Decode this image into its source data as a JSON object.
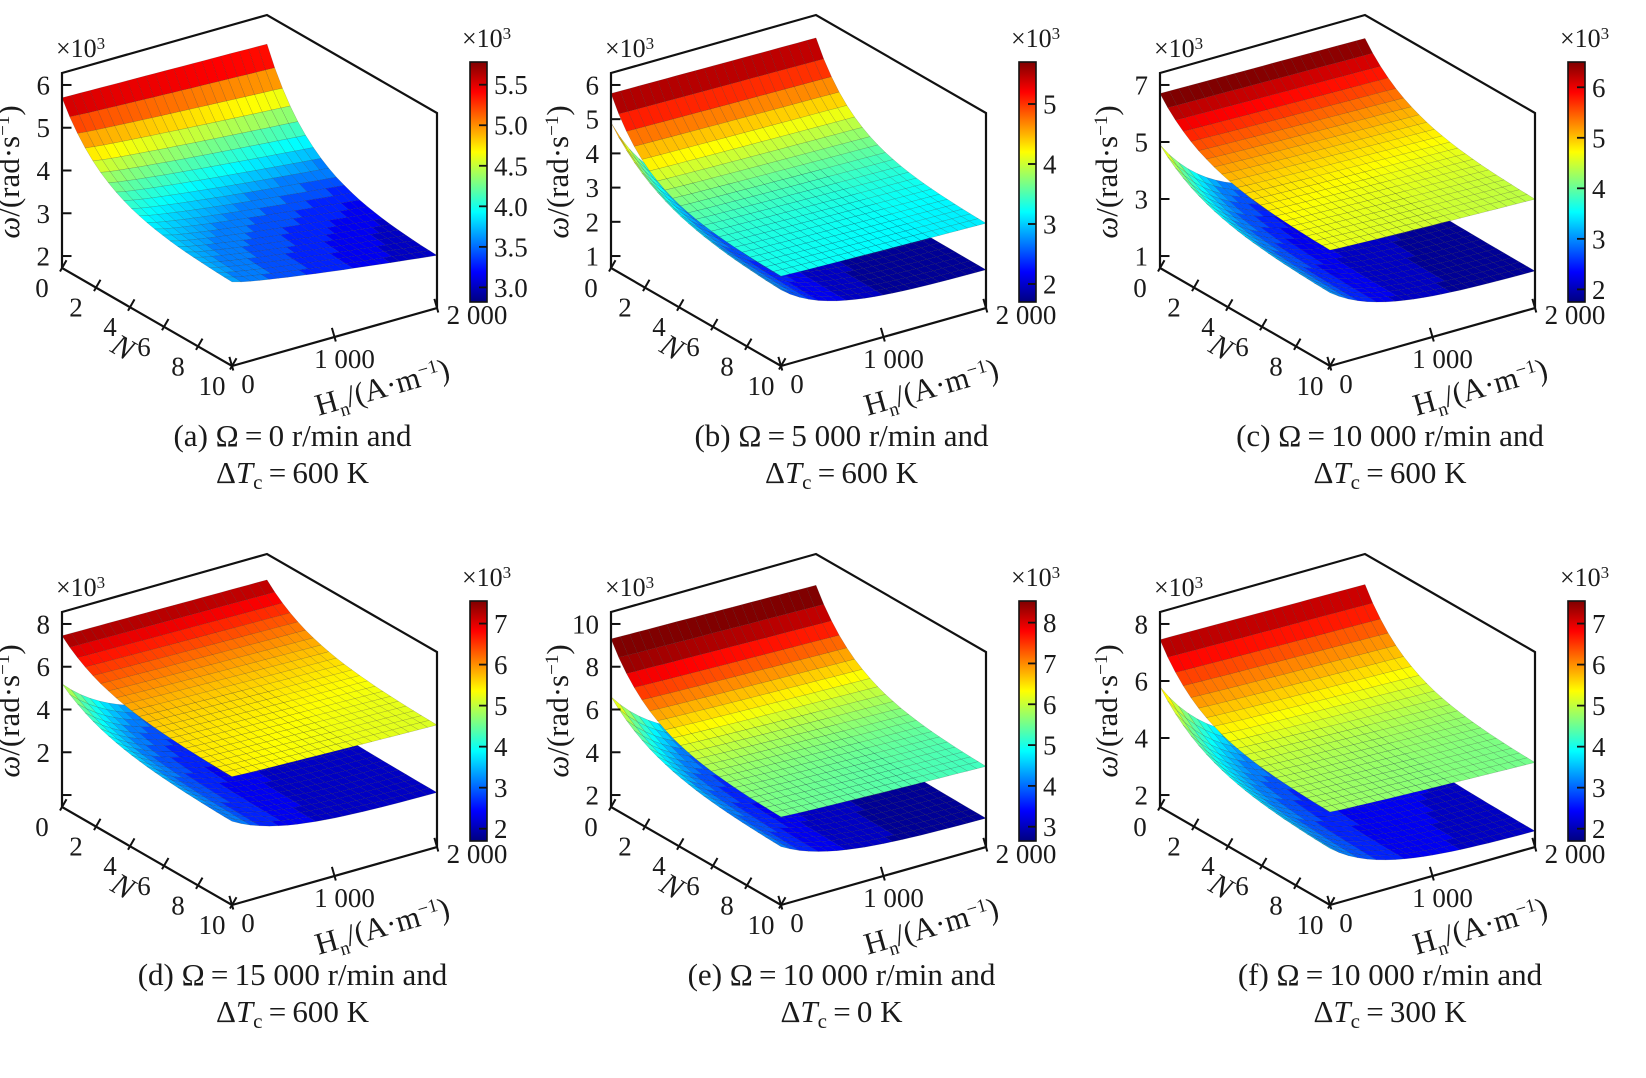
{
  "chart_data": {
    "type": "surface",
    "title": "",
    "layout": {
      "rows": 2,
      "cols": 3,
      "colormap": "jet",
      "grid": "3d-box",
      "legend_position": "colorbar-right"
    },
    "axes": {
      "z": {
        "multiplier": {
          "base": "×10",
          "sup": "3"
        },
        "label": {
          "omega": "ω",
          "rest": "/(rad·s",
          "sup": "−1",
          "close": ")"
        }
      },
      "n": {
        "label": "N",
        "ticks": [
          "0",
          "2",
          "4",
          "6",
          "8",
          "10"
        ],
        "range": [
          0,
          10
        ]
      },
      "h": {
        "label": {
          "H": "H",
          "sub": "n",
          "rest": "/(A·m",
          "sup": "−1",
          "close": ")"
        },
        "ticks": [
          "0",
          "1 000",
          "2 000"
        ],
        "range": [
          0,
          2000
        ]
      }
    },
    "panels": [
      {
        "id": "a",
        "z_ticks": [
          "6",
          "5",
          "4",
          "3",
          "2"
        ],
        "z_tick_values": [
          6000,
          5000,
          4000,
          3000,
          2000
        ],
        "zlim": [
          1720,
          6280
        ],
        "colorbar": {
          "multiplier": {
            "base": "×10",
            "sup": "3"
          },
          "ticks": [
            "5.5",
            "5.0",
            "4.5",
            "4.0",
            "3.5",
            "3.0"
          ],
          "tick_values": [
            5500,
            5000,
            4500,
            4000,
            3500,
            3000
          ],
          "cmin": 2820,
          "cmax": 5780
        },
        "caption": {
          "line1": "(a) Ω = 0 r/min and",
          "line2": {
            "delta": "Δ",
            "T": "T",
            "sub": "c",
            "rest": " = 600 K"
          }
        },
        "surfaces": [
          {
            "role": "single",
            "model": "plateau",
            "nTau": 2.5,
            "corner_values_rad_per_s": {
              "N0_H0": 5700,
              "N0_H2000": 5600,
              "N10_H0": 3650,
              "N10_H2000": 2900
            }
          }
        ]
      },
      {
        "id": "b",
        "z_ticks": [
          "6",
          "5",
          "4",
          "3",
          "2",
          "1"
        ],
        "z_tick_values": [
          6000,
          5000,
          4000,
          3000,
          2000,
          1000
        ],
        "zlim": [
          650,
          6350
        ],
        "colorbar": {
          "multiplier": {
            "base": "×10",
            "sup": "3"
          },
          "ticks": [
            "5",
            "4",
            "3",
            "2"
          ],
          "tick_values": [
            5000,
            4000,
            3000,
            2000
          ],
          "cmin": 1700,
          "cmax": 5700
        },
        "caption": {
          "line1": "(b) Ω = 5 000 r/min and",
          "line2": {
            "delta": "Δ",
            "T": "T",
            "sub": "c",
            "rest": " = 600 K"
          }
        },
        "surfaces": [
          {
            "role": "lower",
            "model": "cliff",
            "nTau": 3.0,
            "hTauTop": 500,
            "hTauInf": 450,
            "corner_values_rad_per_s": {
              "N0_H0": 4900,
              "N0_H2000": 1850,
              "N10_H0": 2800,
              "N10_H2000": 1750
            }
          },
          {
            "role": "upper",
            "model": "plateau",
            "nTau": 2.2,
            "corner_values_rad_per_s": {
              "N0_H0": 5750,
              "N0_H2000": 5680,
              "N10_H0": 3250,
              "N10_H2000": 3100
            }
          }
        ]
      },
      {
        "id": "c",
        "z_ticks": [
          "7",
          "5",
          "3",
          "1"
        ],
        "z_tick_values": [
          7000,
          5000,
          3000,
          1000
        ],
        "zlim": [
          580,
          7420
        ],
        "colorbar": {
          "multiplier": {
            "base": "×10",
            "sup": "3"
          },
          "ticks": [
            "6",
            "5",
            "4",
            "3",
            "2"
          ],
          "tick_values": [
            6000,
            5000,
            4000,
            3000,
            2000
          ],
          "cmin": 1750,
          "cmax": 6500
        },
        "caption": {
          "line1": "(c) Ω = 10 000 r/min and",
          "line2": {
            "delta": "Δ",
            "T": "T",
            "sub": "c",
            "rest": " = 600 K"
          }
        },
        "surfaces": [
          {
            "role": "lower",
            "model": "cliff",
            "nTau": 2.8,
            "hTauTop": 550,
            "hTauInf": 480,
            "corner_values_rad_per_s": {
              "N0_H0": 4900,
              "N0_H2000": 2050,
              "N10_H0": 3100,
              "N10_H2000": 1850
            }
          },
          {
            "role": "upper",
            "model": "plateau",
            "nTau": 2.6,
            "corner_values_rad_per_s": {
              "N0_H0": 6700,
              "N0_H2000": 6600,
              "N10_H0": 4600,
              "N10_H2000": 4350
            }
          }
        ]
      },
      {
        "id": "d",
        "z_ticks": [
          "8",
          "6",
          "4",
          "2",
          "0"
        ],
        "z_tick_values": [
          8000,
          6000,
          4000,
          2000,
          0
        ],
        "zlim": [
          -560,
          8560
        ],
        "colorbar": {
          "multiplier": {
            "base": "×10",
            "sup": "3"
          },
          "ticks": [
            "7",
            "6",
            "5",
            "4",
            "3",
            "2"
          ],
          "tick_values": [
            7000,
            6000,
            5000,
            4000,
            3000,
            2000
          ],
          "cmin": 1700,
          "cmax": 7550
        },
        "caption": {
          "line1": "(d) Ω = 15 000 r/min and",
          "line2": {
            "delta": "Δ",
            "T": "T",
            "sub": "c",
            "rest": " = 600 K"
          }
        },
        "surfaces": [
          {
            "role": "lower",
            "model": "cliff",
            "nTau": 2.8,
            "hTauTop": 600,
            "hTauInf": 500,
            "corner_values_rad_per_s": {
              "N0_H0": 5200,
              "N0_H2000": 2350,
              "N10_H0": 3300,
              "N10_H2000": 1950
            }
          },
          {
            "role": "upper",
            "model": "plateau",
            "nTau": 2.6,
            "corner_values_rad_per_s": {
              "N0_H0": 7450,
              "N0_H2000": 7350,
              "N10_H0": 5400,
              "N10_H2000": 5100
            }
          }
        ]
      },
      {
        "id": "e",
        "z_ticks": [
          "10",
          "8",
          "6",
          "4",
          "2"
        ],
        "z_tick_values": [
          10000,
          8000,
          6000,
          4000,
          2000
        ],
        "zlim": [
          1440,
          10560
        ],
        "colorbar": {
          "multiplier": {
            "base": "×10",
            "sup": "3"
          },
          "ticks": [
            "8",
            "7",
            "6",
            "5",
            "4",
            "3"
          ],
          "tick_values": [
            8000,
            7000,
            6000,
            5000,
            4000,
            3000
          ],
          "cmin": 2650,
          "cmax": 8530
        },
        "caption": {
          "line1": "(e) Ω = 10 000 r/min and",
          "line2": {
            "delta": "Δ",
            "T": "T",
            "sub": "c",
            "rest": " = 0 K"
          }
        },
        "surfaces": [
          {
            "role": "lower",
            "model": "cliff",
            "nTau": 2.8,
            "hTauTop": 600,
            "hTauInf": 500,
            "corner_values_rad_per_s": {
              "N0_H0": 6600,
              "N0_H2000": 3100,
              "N10_H0": 4100,
              "N10_H2000": 2750
            }
          },
          {
            "role": "upper",
            "model": "plateau",
            "nTau": 2.4,
            "corner_values_rad_per_s": {
              "N0_H0": 9300,
              "N0_H2000": 9100,
              "N10_H0": 5500,
              "N10_H2000": 5150
            }
          }
        ]
      },
      {
        "id": "f",
        "z_ticks": [
          "8",
          "6",
          "4",
          "2"
        ],
        "z_tick_values": [
          8000,
          6000,
          4000,
          2000
        ],
        "zlim": [
          1580,
          8420
        ],
        "colorbar": {
          "multiplier": {
            "base": "×10",
            "sup": "3"
          },
          "ticks": [
            "7",
            "6",
            "5",
            "4",
            "3",
            "2"
          ],
          "tick_values": [
            7000,
            6000,
            5000,
            4000,
            3000,
            2000
          ],
          "cmin": 1700,
          "cmax": 7550
        },
        "caption": {
          "line1": "(f) Ω = 10 000 r/min and",
          "line2": {
            "delta": "Δ",
            "T": "T",
            "sub": "c",
            "rest": " = 300 K"
          }
        },
        "surfaces": [
          {
            "role": "lower",
            "model": "cliff",
            "nTau": 2.8,
            "hTauTop": 600,
            "hTauInf": 500,
            "corner_values_rad_per_s": {
              "N0_H0": 5800,
              "N0_H2000": 2500,
              "N10_H0": 3500,
              "N10_H2000": 2100
            }
          },
          {
            "role": "upper",
            "model": "plateau",
            "nTau": 2.4,
            "corner_values_rad_per_s": {
              "N0_H0": 7450,
              "N0_H2000": 7350,
              "N10_H0": 4800,
              "N10_H2000": 4500
            }
          }
        ]
      }
    ],
    "colors": {
      "box_line": "#111111",
      "text": "#1a1a1a",
      "background": "#ffffff",
      "jet_low": "#00008f",
      "jet_high": "#8f0000"
    }
  }
}
